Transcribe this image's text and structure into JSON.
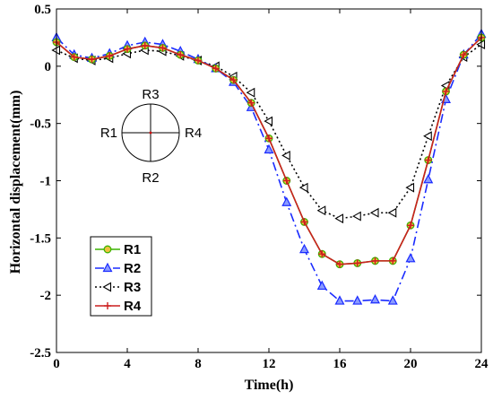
{
  "chart_data": {
    "type": "line",
    "xlabel": "Time(h)",
    "ylabel": "Horizontal displacement(mm)",
    "xlim": [
      0,
      24
    ],
    "ylim": [
      -2.5,
      0.5
    ],
    "xticks": [
      0,
      4,
      8,
      12,
      16,
      20,
      24
    ],
    "yticks": [
      0.5,
      0,
      -0.5,
      -1,
      -1.5,
      -2,
      -2.5
    ],
    "xtick_labels": [
      "0",
      "4",
      "8",
      "12",
      "16",
      "20",
      "24"
    ],
    "ytick_labels": [
      "0.5",
      "0",
      "-0.5",
      "-1",
      "-1.5",
      "-2",
      "-2.5"
    ],
    "grid": false,
    "legend_position": "bottom-left",
    "x": [
      0,
      1,
      2,
      3,
      4,
      5,
      6,
      7,
      8,
      9,
      10,
      11,
      12,
      13,
      14,
      15,
      16,
      17,
      18,
      19,
      20,
      21,
      22,
      23,
      24
    ],
    "series": [
      {
        "name": "R1",
        "color": "#3cb400",
        "marker": "circle",
        "dash": "solid",
        "values": [
          0.21,
          0.08,
          0.06,
          0.09,
          0.15,
          0.18,
          0.16,
          0.1,
          0.05,
          -0.02,
          -0.12,
          -0.32,
          -0.63,
          -1.0,
          -1.36,
          -1.64,
          -1.73,
          -1.72,
          -1.7,
          -1.7,
          -1.39,
          -0.82,
          -0.22,
          0.1,
          0.25
        ]
      },
      {
        "name": "R2",
        "color": "#1a2bff",
        "marker": "triangle-up",
        "dash": "dashdot",
        "values": [
          0.25,
          0.1,
          0.07,
          0.11,
          0.18,
          0.21,
          0.19,
          0.13,
          0.06,
          -0.02,
          -0.14,
          -0.36,
          -0.73,
          -1.19,
          -1.6,
          -1.92,
          -2.05,
          -2.05,
          -2.04,
          -2.05,
          -1.68,
          -0.99,
          -0.29,
          0.1,
          0.28
        ]
      },
      {
        "name": "R3",
        "color": "#000000",
        "marker": "triangle-left",
        "dash": "dotted",
        "values": [
          0.14,
          0.07,
          0.05,
          0.07,
          0.11,
          0.14,
          0.13,
          0.09,
          0.05,
          0.0,
          -0.09,
          -0.23,
          -0.48,
          -0.78,
          -1.06,
          -1.26,
          -1.33,
          -1.31,
          -1.28,
          -1.28,
          -1.06,
          -0.61,
          -0.17,
          0.08,
          0.19
        ]
      },
      {
        "name": "R4",
        "color": "#cc1f1f",
        "marker": "plus",
        "dash": "solid",
        "values": [
          0.21,
          0.08,
          0.06,
          0.09,
          0.15,
          0.18,
          0.16,
          0.1,
          0.05,
          -0.02,
          -0.12,
          -0.32,
          -0.63,
          -1.0,
          -1.36,
          -1.64,
          -1.73,
          -1.72,
          -1.7,
          -1.7,
          -1.39,
          -0.82,
          -0.22,
          0.1,
          0.25
        ]
      }
    ],
    "inset": {
      "labels": {
        "top": "R3",
        "left": "R1",
        "right": "R4",
        "bottom": "R2"
      }
    }
  }
}
